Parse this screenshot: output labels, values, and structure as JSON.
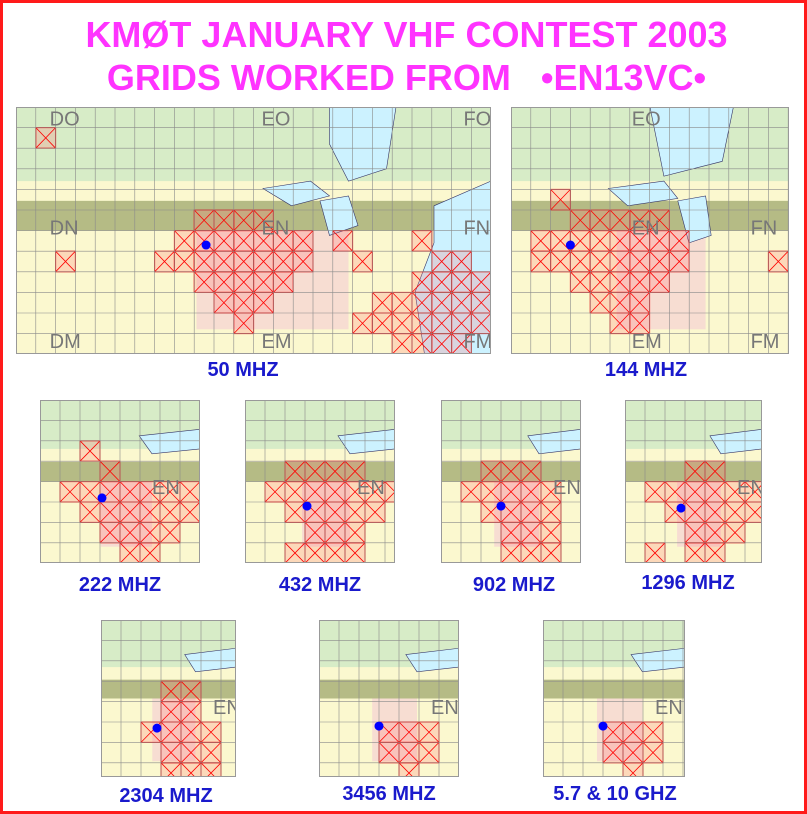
{
  "title_line1": "KMØT JANUARY VHF CONTEST 2003",
  "title_line2": "GRIDS WORKED FROM   •EN13VC•",
  "colors": {
    "border": "#ff1a1a",
    "title": "#ff33ff",
    "label": "#1a1acc",
    "worked": "#ff0000",
    "qth_dot": "#0000ff",
    "water": "#ccf2ff",
    "land_green": "#d7ecc7",
    "land_pink": "#f7ddd2",
    "land_yellow": "#fbf8cf",
    "land_olive": "#b5bb85"
  },
  "field_labels": {
    "50": [
      "DO",
      "EO",
      "FO",
      "DN",
      "EN",
      "FN",
      "DM",
      "EM",
      "FM"
    ],
    "144": [
      "EO",
      "EN",
      "FN",
      "EM",
      "FM"
    ],
    "small": [
      "EN"
    ]
  },
  "maps": [
    {
      "band": "50 MHZ",
      "worked_cells": [
        [
          1,
          1
        ],
        [
          9,
          5
        ],
        [
          10,
          5
        ],
        [
          11,
          5
        ],
        [
          12,
          5
        ],
        [
          8,
          6
        ],
        [
          9,
          6
        ],
        [
          10,
          6
        ],
        [
          11,
          6
        ],
        [
          12,
          6
        ],
        [
          13,
          6
        ],
        [
          14,
          6
        ],
        [
          7,
          7
        ],
        [
          8,
          7
        ],
        [
          9,
          7
        ],
        [
          10,
          7
        ],
        [
          11,
          7
        ],
        [
          12,
          7
        ],
        [
          13,
          7
        ],
        [
          14,
          7
        ],
        [
          9,
          8
        ],
        [
          10,
          8
        ],
        [
          11,
          8
        ],
        [
          12,
          8
        ],
        [
          13,
          8
        ],
        [
          10,
          9
        ],
        [
          11,
          9
        ],
        [
          12,
          9
        ],
        [
          11,
          10
        ],
        [
          2,
          7
        ],
        [
          16,
          6
        ],
        [
          17,
          7
        ],
        [
          20,
          6
        ],
        [
          21,
          7
        ],
        [
          22,
          7
        ],
        [
          20,
          8
        ],
        [
          21,
          8
        ],
        [
          22,
          8
        ],
        [
          23,
          8
        ],
        [
          24,
          8
        ],
        [
          18,
          9
        ],
        [
          19,
          9
        ],
        [
          20,
          9
        ],
        [
          21,
          9
        ],
        [
          22,
          9
        ],
        [
          23,
          9
        ],
        [
          24,
          9
        ],
        [
          17,
          10
        ],
        [
          18,
          10
        ],
        [
          19,
          10
        ],
        [
          20,
          10
        ],
        [
          21,
          10
        ],
        [
          22,
          10
        ],
        [
          23,
          10
        ],
        [
          19,
          11
        ],
        [
          20,
          11
        ],
        [
          21,
          11
        ],
        [
          22,
          11
        ],
        [
          19,
          12
        ],
        [
          20,
          12
        ],
        [
          18,
          13
        ],
        [
          19,
          13
        ],
        [
          20,
          13
        ]
      ]
    },
    {
      "band": "144 MHZ",
      "worked_cells": [
        [
          2,
          4
        ],
        [
          2,
          6
        ],
        [
          3,
          5
        ],
        [
          4,
          5
        ],
        [
          5,
          5
        ],
        [
          6,
          5
        ],
        [
          7,
          5
        ],
        [
          1,
          6
        ],
        [
          3,
          6
        ],
        [
          4,
          6
        ],
        [
          5,
          6
        ],
        [
          6,
          6
        ],
        [
          7,
          6
        ],
        [
          8,
          6
        ],
        [
          1,
          7
        ],
        [
          2,
          7
        ],
        [
          3,
          7
        ],
        [
          4,
          7
        ],
        [
          5,
          7
        ],
        [
          6,
          7
        ],
        [
          7,
          7
        ],
        [
          8,
          7
        ],
        [
          3,
          8
        ],
        [
          4,
          8
        ],
        [
          5,
          8
        ],
        [
          6,
          8
        ],
        [
          7,
          8
        ],
        [
          4,
          9
        ],
        [
          5,
          9
        ],
        [
          6,
          9
        ],
        [
          5,
          10
        ],
        [
          6,
          10
        ],
        [
          13,
          7
        ]
      ]
    },
    {
      "band": "222 MHZ",
      "worked_cells": [
        [
          2,
          2
        ],
        [
          3,
          3
        ],
        [
          1,
          4
        ],
        [
          2,
          4
        ],
        [
          3,
          4
        ],
        [
          4,
          4
        ],
        [
          5,
          4
        ],
        [
          6,
          4
        ],
        [
          7,
          4
        ],
        [
          8,
          4
        ],
        [
          2,
          5
        ],
        [
          3,
          5
        ],
        [
          4,
          5
        ],
        [
          5,
          5
        ],
        [
          6,
          5
        ],
        [
          7,
          5
        ],
        [
          3,
          6
        ],
        [
          4,
          6
        ],
        [
          5,
          6
        ],
        [
          6,
          6
        ],
        [
          4,
          7
        ],
        [
          5,
          7
        ],
        [
          2,
          8
        ],
        [
          3,
          8
        ],
        [
          4,
          8
        ]
      ]
    },
    {
      "band": "432 MHZ",
      "worked_cells": [
        [
          2,
          3
        ],
        [
          3,
          3
        ],
        [
          4,
          3
        ],
        [
          5,
          3
        ],
        [
          1,
          4
        ],
        [
          2,
          4
        ],
        [
          3,
          4
        ],
        [
          4,
          4
        ],
        [
          5,
          4
        ],
        [
          6,
          4
        ],
        [
          7,
          4
        ],
        [
          2,
          5
        ],
        [
          3,
          5
        ],
        [
          4,
          5
        ],
        [
          5,
          5
        ],
        [
          6,
          5
        ],
        [
          3,
          6
        ],
        [
          4,
          6
        ],
        [
          5,
          6
        ],
        [
          2,
          7
        ],
        [
          3,
          7
        ],
        [
          4,
          7
        ],
        [
          5,
          7
        ],
        [
          1,
          8
        ],
        [
          2,
          8
        ],
        [
          3,
          8
        ],
        [
          4,
          8
        ]
      ]
    },
    {
      "band": "902 MHZ",
      "worked_cells": [
        [
          2,
          3
        ],
        [
          3,
          3
        ],
        [
          4,
          3
        ],
        [
          1,
          4
        ],
        [
          2,
          4
        ],
        [
          3,
          4
        ],
        [
          4,
          4
        ],
        [
          5,
          4
        ],
        [
          2,
          5
        ],
        [
          3,
          5
        ],
        [
          4,
          5
        ],
        [
          5,
          5
        ],
        [
          3,
          6
        ],
        [
          4,
          6
        ],
        [
          5,
          6
        ],
        [
          3,
          7
        ],
        [
          4,
          7
        ],
        [
          5,
          7
        ]
      ]
    },
    {
      "band": "1296 MHZ",
      "worked_cells": [
        [
          3,
          3
        ],
        [
          4,
          3
        ],
        [
          1,
          4
        ],
        [
          2,
          4
        ],
        [
          3,
          4
        ],
        [
          4,
          4
        ],
        [
          5,
          4
        ],
        [
          6,
          4
        ],
        [
          7,
          4
        ],
        [
          2,
          5
        ],
        [
          3,
          5
        ],
        [
          4,
          5
        ],
        [
          5,
          5
        ],
        [
          6,
          5
        ],
        [
          3,
          6
        ],
        [
          4,
          6
        ],
        [
          5,
          6
        ],
        [
          1,
          7
        ],
        [
          3,
          7
        ],
        [
          4,
          7
        ]
      ]
    },
    {
      "band": "2304 MHZ",
      "worked_cells": [
        [
          3,
          3
        ],
        [
          4,
          3
        ],
        [
          3,
          4
        ],
        [
          4,
          4
        ],
        [
          2,
          5
        ],
        [
          3,
          5
        ],
        [
          4,
          5
        ],
        [
          5,
          5
        ],
        [
          3,
          6
        ],
        [
          4,
          6
        ],
        [
          5,
          6
        ],
        [
          3,
          7
        ],
        [
          4,
          7
        ],
        [
          5,
          7
        ]
      ]
    },
    {
      "band": "3456 MHZ",
      "worked_cells": [
        [
          3,
          5
        ],
        [
          4,
          5
        ],
        [
          5,
          5
        ],
        [
          3,
          6
        ],
        [
          4,
          6
        ],
        [
          5,
          6
        ],
        [
          4,
          7
        ]
      ]
    },
    {
      "band": "5.7 & 10 GHZ",
      "worked_cells": [
        [
          3,
          5
        ],
        [
          4,
          5
        ],
        [
          5,
          5
        ],
        [
          3,
          6
        ],
        [
          4,
          6
        ],
        [
          5,
          6
        ],
        [
          4,
          7
        ]
      ]
    }
  ],
  "labels": {
    "m50": "50 MHZ",
    "m144": "144 MHZ",
    "m222": "222 MHZ",
    "m432": "432 MHZ",
    "m902": "902 MHZ",
    "m1296": "1296 MHZ",
    "m2304": "2304 MHZ",
    "m3456": "3456 MHZ",
    "m57": "5.7 & 10 GHZ"
  }
}
